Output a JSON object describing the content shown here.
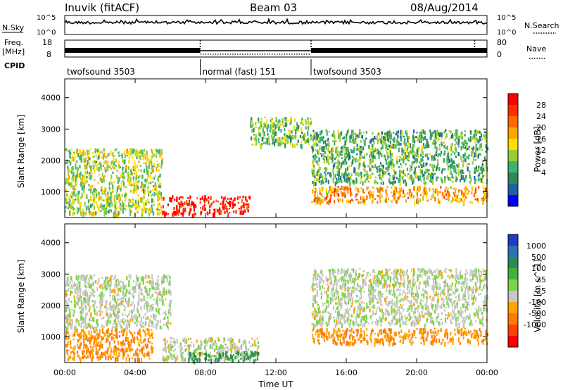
{
  "header": {
    "station": "Inuvik  (fitACF)",
    "beam": "Beam 03",
    "date": "08/Aug/2014"
  },
  "top_panels": {
    "nsky_label": "N.Sky",
    "nsky_ticks": [
      "10^5",
      "10^0"
    ],
    "nsearch_label": "N.Search",
    "nsearch_ticks": [
      "10^5",
      "10^0"
    ],
    "freq_label_1": "Freq.",
    "freq_label_2": "[MHz]",
    "freq_ticks": [
      "18",
      "8"
    ],
    "nave_label": "Nave",
    "nave_ticks": [
      "80",
      "0"
    ],
    "cpid_label": "CPID",
    "modes": [
      {
        "label": "twofsound 3503",
        "start_h": 0,
        "end_h": 7.7
      },
      {
        "label": "normal (fast) 151",
        "start_h": 7.7,
        "end_h": 14.0
      },
      {
        "label": "twofsound 3503",
        "start_h": 14.0,
        "end_h": 24
      }
    ]
  },
  "axes": {
    "ylabel": "Slant Range [km]",
    "yticks": [
      "4000",
      "3000",
      "2000",
      "1000"
    ],
    "xlabel": "Time UT",
    "xticks": [
      "00:00",
      "04:00",
      "08:00",
      "12:00",
      "16:00",
      "20:00",
      "00:00"
    ]
  },
  "power_scale": {
    "label": "Power [dB]",
    "ticks": [
      "28",
      "24",
      "20",
      "16",
      "12",
      "8",
      "4"
    ],
    "colors": [
      "#ff0000",
      "#ff2f00",
      "#ff6a00",
      "#ffa500",
      "#ffdd00",
      "#9acd32",
      "#3cb371",
      "#2e8b57",
      "#1e5fa8",
      "#0000ff"
    ]
  },
  "velocity_scale": {
    "label": "Velocity [m s^-1]",
    "ticks": [
      "1000",
      "500",
      "100",
      "25",
      "-25",
      "-100",
      "-500",
      "-1000"
    ],
    "colors": [
      "#1e3cc8",
      "#2d6fb4",
      "#2e8b57",
      "#3cb33c",
      "#7fd34a",
      "#c8c8c8",
      "#ffa500",
      "#ff7a00",
      "#ff4000",
      "#ff0000"
    ]
  },
  "chart_data": [
    {
      "type": "heatmap",
      "title": "Power",
      "xlabel": "Time UT",
      "ylabel": "Slant Range [km]",
      "xlim_hours": [
        0,
        24
      ],
      "ylim_km": [
        180,
        4600
      ],
      "colorbar_label": "Power [dB]",
      "colorbar_range": [
        0,
        30
      ],
      "regions": [
        {
          "t": [
            0,
            5.5
          ],
          "r": [
            300,
            2400
          ],
          "value": 14
        },
        {
          "t": [
            5.5,
            10.5
          ],
          "r": [
            300,
            900
          ],
          "value": 30
        },
        {
          "t": [
            10.5,
            14
          ],
          "r": [
            2500,
            3400
          ],
          "value": 12
        },
        {
          "t": [
            14,
            24
          ],
          "r": [
            700,
            1200
          ],
          "value": 20
        },
        {
          "t": [
            14,
            24
          ],
          "r": [
            1300,
            3000
          ],
          "value": 10
        }
      ]
    },
    {
      "type": "heatmap",
      "title": "Velocity",
      "xlabel": "Time UT",
      "ylabel": "Slant Range [km]",
      "xlim_hours": [
        0,
        24
      ],
      "ylim_km": [
        180,
        4600
      ],
      "colorbar_label": "Velocity [m s^-1]",
      "colorbar_range": [
        -1000,
        1000
      ],
      "regions": [
        {
          "t": [
            0,
            5
          ],
          "r": [
            300,
            1300
          ],
          "value": -100
        },
        {
          "t": [
            0,
            6
          ],
          "r": [
            1300,
            3000
          ],
          "value": 0
        },
        {
          "t": [
            5.5,
            11
          ],
          "r": [
            300,
            1000
          ],
          "value": 0
        },
        {
          "t": [
            7,
            11
          ],
          "r": [
            250,
            550
          ],
          "value": 100
        },
        {
          "t": [
            14,
            24
          ],
          "r": [
            800,
            1300
          ],
          "value": -100
        },
        {
          "t": [
            14,
            24
          ],
          "r": [
            1400,
            3200
          ],
          "value": 0
        }
      ]
    }
  ]
}
